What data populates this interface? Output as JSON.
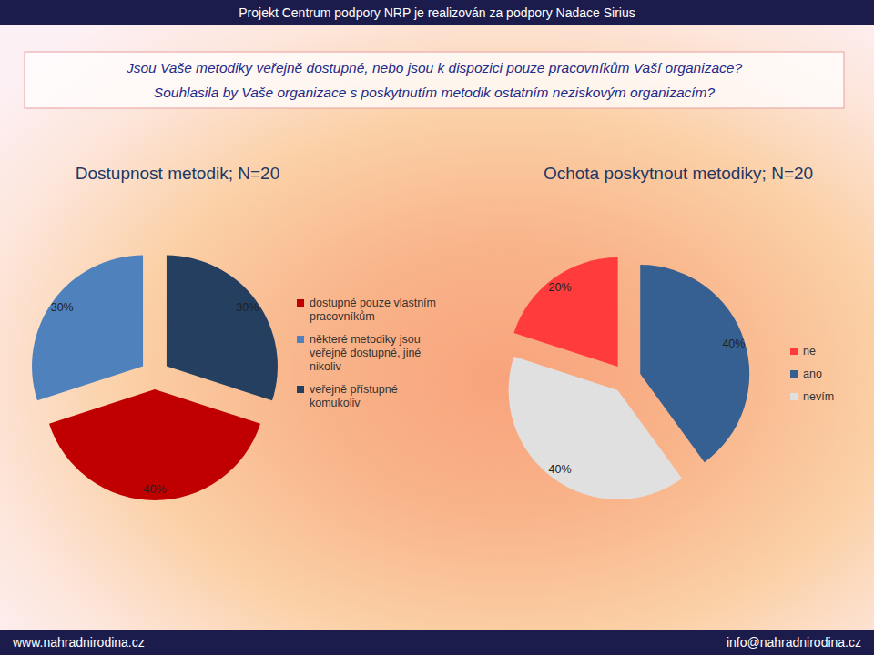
{
  "header": "Projekt Centrum podpory NRP je realizován za podpory Nadace Sirius",
  "question": [
    "Jsou Vaše metodiky veřejně dostupné, nebo jsou k dispozici pouze pracovníkům Vaší organizace?",
    "Souhlasila by Vaše organizace s poskytnutím metodik ostatním neziskovým organizacím?"
  ],
  "footer": {
    "left": "www.nahradnirodina.cz",
    "right": "info@nahradnirodina.cz"
  },
  "chart_data": [
    {
      "type": "pie",
      "title": "Dostupnost metodik; N=20",
      "categories": [
        "dostupné pouze vlastním pracovníkům",
        "některé metodiky jsou veřejně dostupné, jiné nikoliv",
        "veřejně přístupné komukoliv"
      ],
      "values": [
        40,
        30,
        30
      ],
      "value_labels": [
        "40%",
        "30%",
        "30%"
      ],
      "colors": [
        "#c00000",
        "#4f81bd",
        "#243f60"
      ],
      "data_labels": true,
      "legend": "right"
    },
    {
      "type": "pie",
      "title": "Ochota poskytnout metodiky; N=20",
      "categories": [
        "ne",
        "ano",
        "nevím"
      ],
      "values": [
        20,
        40,
        40
      ],
      "value_labels": [
        "20%",
        "40%",
        "40%"
      ],
      "colors": [
        "#ff3b3b",
        "#366092",
        "#e0e0e0"
      ],
      "data_labels": true,
      "legend": "right"
    }
  ]
}
